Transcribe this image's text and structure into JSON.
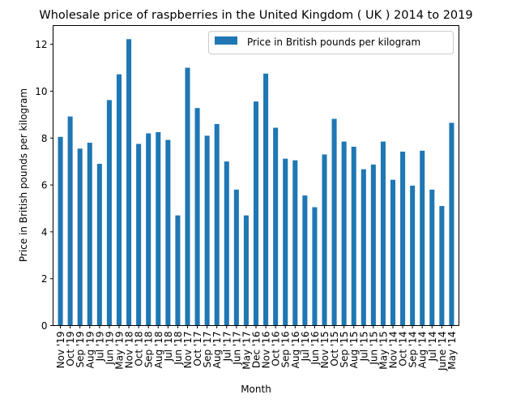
{
  "chart_data": {
    "type": "bar",
    "title": "Wholesale price of raspberries in the United Kingdom ( UK ) 2014 to 2019",
    "xlabel": "Month",
    "ylabel": "Price in British pounds per kilogram",
    "ylim": [
      0,
      12.8
    ],
    "yticks": [
      "0",
      "2",
      "4",
      "6",
      "8",
      "10",
      "12"
    ],
    "grid": false,
    "legend_position": "top-right",
    "series": [
      {
        "name": "Price in British pounds per kilogram",
        "color": "#1f77b4",
        "values": [
          8.05,
          8.92,
          7.55,
          7.8,
          6.9,
          9.62,
          10.72,
          12.22,
          7.75,
          8.2,
          8.25,
          7.92,
          4.7,
          11.0,
          9.28,
          8.1,
          8.6,
          7.0,
          5.8,
          4.7,
          9.56,
          10.75,
          8.44,
          7.12,
          7.05,
          5.55,
          5.05,
          7.3,
          8.82,
          7.85,
          7.63,
          6.67,
          6.87,
          7.85,
          6.22,
          7.42,
          5.97,
          7.46,
          5.8,
          5.1,
          8.65
        ]
      }
    ],
    "categories": [
      "Nov '19",
      "Oct '19",
      "Sep '19",
      "Aug '19",
      "Jul '19",
      "Jun '19",
      "May '19",
      "Nov '18",
      "Oct '18",
      "Sep '18",
      "Aug '18",
      "Jul '18",
      "Jun '18",
      "Nov '17",
      "Oct '17",
      "Sep '17",
      "Aug '17",
      "Jul '17",
      "Jun '17",
      "May '17",
      "Dec '16",
      "Nov '16",
      "Oct '16",
      "Sep '16",
      "Aug '16",
      "Jul '16",
      "Jun '16",
      "Nov '15",
      "Oct '15",
      "Sep '15",
      "Aug '15",
      "Jul '15",
      "Jun '15",
      "May '15",
      "Nov '14",
      "Oct '14",
      "Sep '14",
      "Aug '14",
      "Jul '14",
      "June '14",
      "May '14"
    ]
  }
}
